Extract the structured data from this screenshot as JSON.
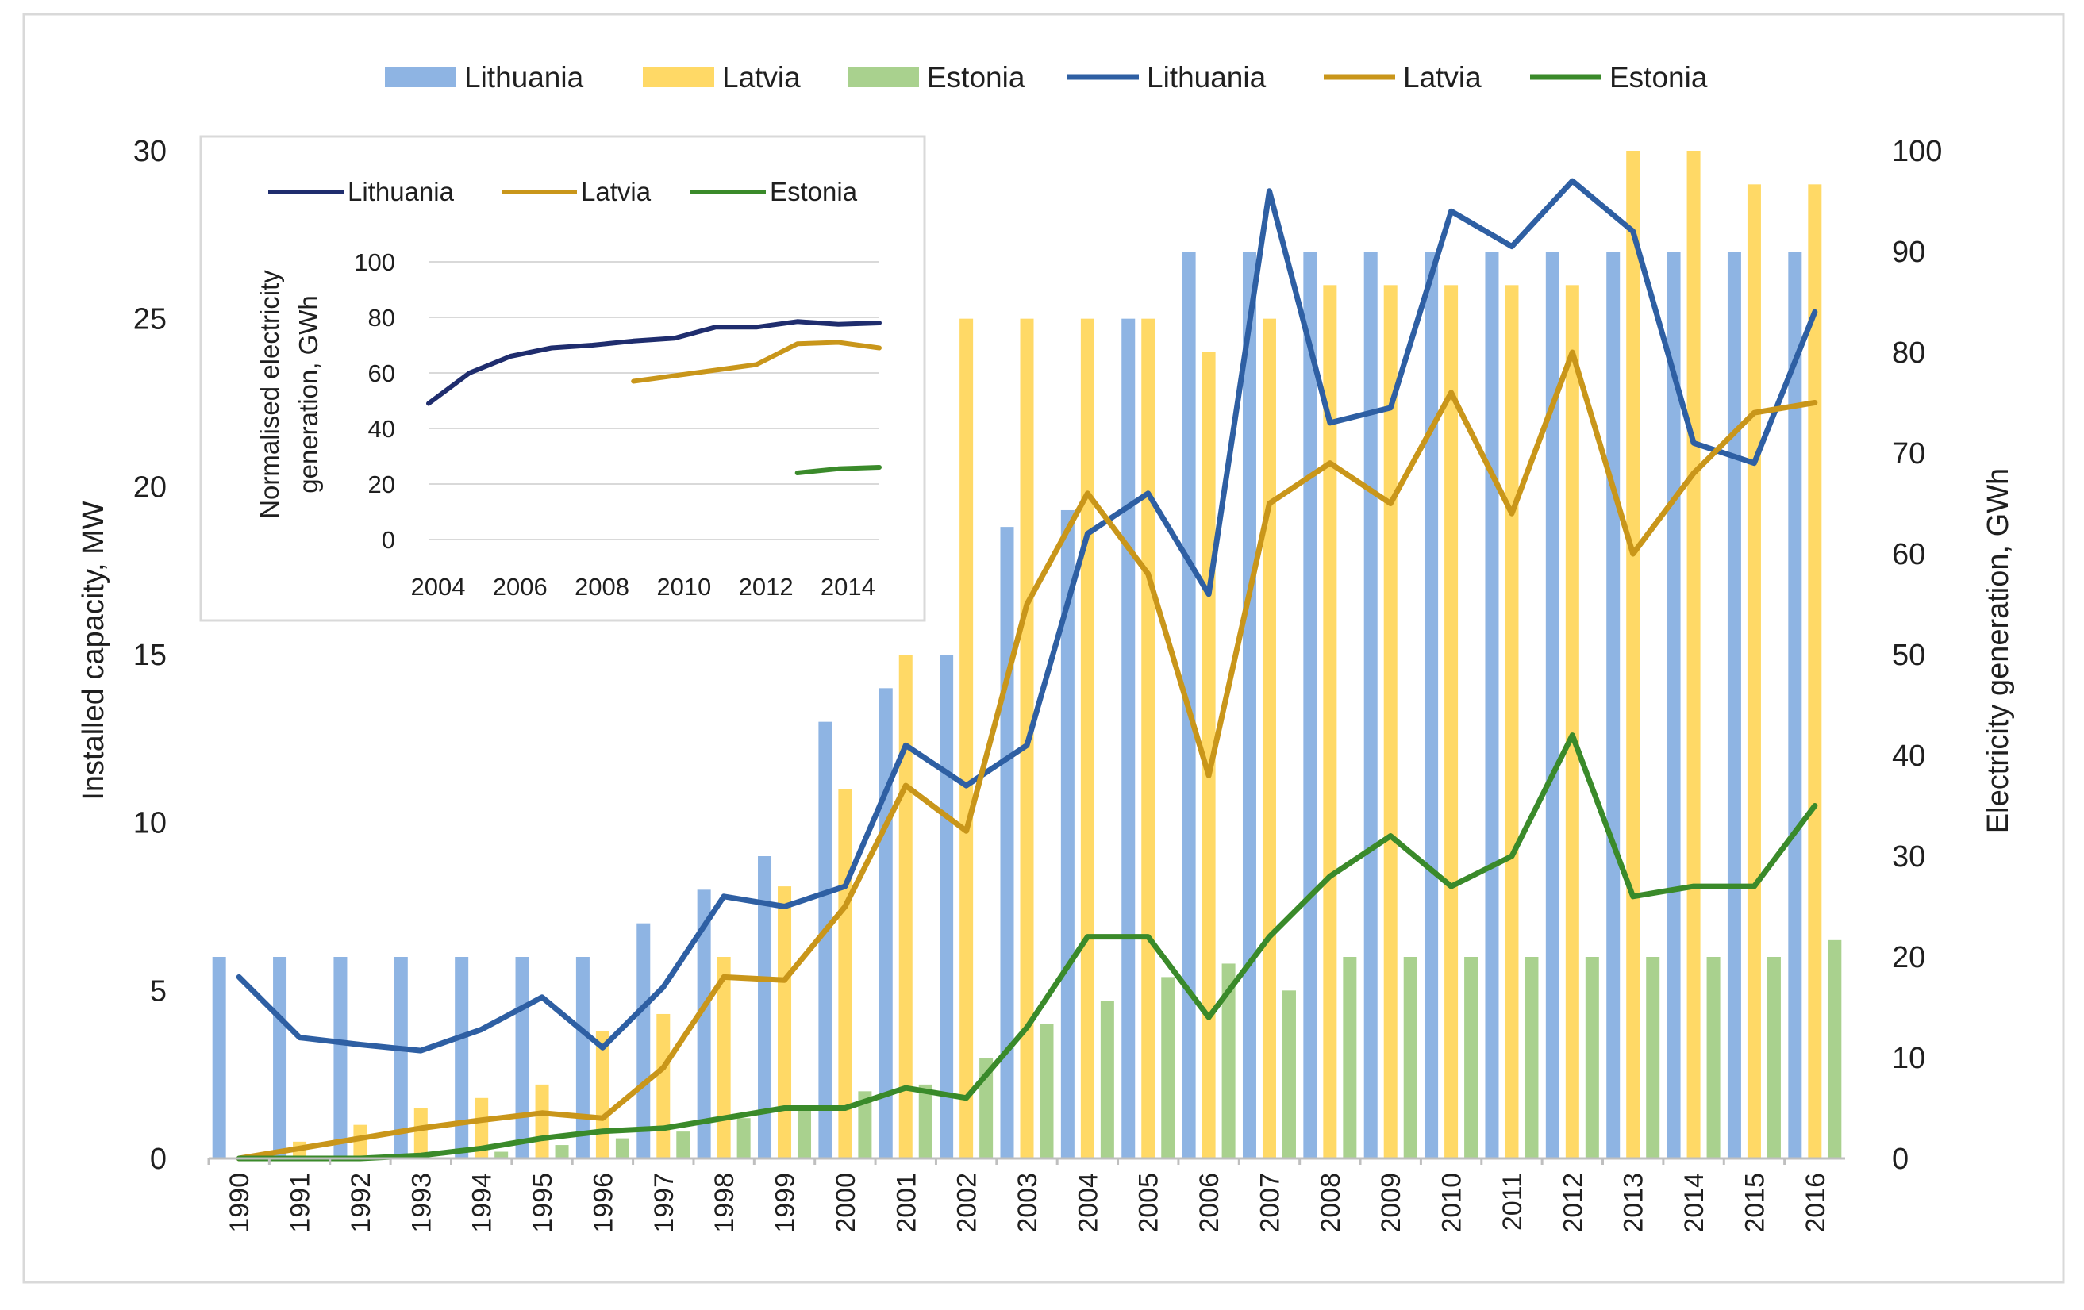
{
  "chart_data": [
    {
      "type": "bar+line",
      "title": "",
      "xlabel": "",
      "ylabel_left": "Installed capacity, MW",
      "ylabel_right": "Electricity generation, GWh",
      "ylim_left": [
        0,
        30
      ],
      "ylim_right": [
        0,
        100
      ],
      "yticks_left": [
        "0",
        "5",
        "10",
        "15",
        "20",
        "25",
        "30"
      ],
      "yticks_right": [
        "0",
        "10",
        "20",
        "30",
        "40",
        "50",
        "60",
        "70",
        "80",
        "90",
        "100"
      ],
      "legend_position": "top",
      "categories": [
        "1990",
        "1991",
        "1992",
        "1993",
        "1994",
        "1995",
        "1996",
        "1997",
        "1998",
        "1999",
        "2000",
        "2001",
        "2002",
        "2003",
        "2004",
        "2005",
        "2006",
        "2007",
        "2008",
        "2009",
        "2010",
        "2011",
        "2012",
        "2013",
        "2014",
        "2015",
        "2016"
      ],
      "bar_series": [
        {
          "name": "Lithuania",
          "color": "#8eb4e3",
          "axis": "left",
          "values": [
            6,
            6,
            6,
            6,
            6,
            6,
            6,
            7,
            8,
            9,
            13,
            14,
            15,
            18.8,
            19.3,
            25,
            27,
            27,
            27,
            27,
            27,
            27,
            27,
            27,
            27,
            27,
            27
          ]
        },
        {
          "name": "Latvia",
          "color": "#ffd966",
          "axis": "left",
          "values": [
            0,
            0.5,
            1,
            1.5,
            1.8,
            2.2,
            3.8,
            4.3,
            6,
            8.1,
            11,
            15,
            25,
            25,
            25,
            25,
            24,
            25,
            26,
            26,
            26,
            26,
            26,
            30,
            30,
            29,
            29
          ]
        },
        {
          "name": "Estonia",
          "color": "#a9d18e",
          "axis": "left",
          "values": [
            0,
            0,
            0,
            0,
            0.2,
            0.4,
            0.6,
            0.8,
            1.2,
            1.5,
            2,
            2.2,
            3,
            4,
            4.7,
            5.4,
            5.8,
            5,
            6,
            6,
            6,
            6,
            6,
            6,
            6,
            6,
            6.5
          ]
        }
      ],
      "line_series": [
        {
          "name": "Lithuania",
          "color": "#2e5fa3",
          "axis": "right",
          "values": [
            18,
            12,
            11.3,
            10.7,
            12.8,
            16,
            11,
            17,
            26,
            25,
            27,
            41,
            37,
            41,
            62,
            66,
            56,
            96,
            73,
            74.5,
            94,
            90.5,
            97,
            92,
            71,
            69,
            84
          ]
        },
        {
          "name": "Latvia",
          "color": "#c9961a",
          "axis": "right",
          "values": [
            0,
            1,
            2,
            3,
            3.8,
            4.5,
            4,
            9,
            18,
            17.7,
            25,
            37,
            32.5,
            55,
            66,
            58,
            38,
            65,
            69,
            65,
            76,
            64,
            80,
            60,
            68,
            74,
            75
          ]
        },
        {
          "name": "Estonia",
          "color": "#3a8a2a",
          "axis": "right",
          "values": [
            0,
            0,
            0,
            0.3,
            1,
            2,
            2.7,
            3,
            4,
            5,
            5,
            7,
            6,
            13,
            22,
            22,
            14,
            22,
            28,
            32,
            27,
            30,
            42,
            26,
            27,
            27,
            35
          ]
        }
      ]
    },
    {
      "type": "line",
      "title": "",
      "xlabel": "",
      "ylabel": "Normalised electricity generation, GWh",
      "ylim": [
        0,
        100
      ],
      "yticks": [
        "0",
        "20",
        "40",
        "60",
        "80",
        "100"
      ],
      "xticks": [
        "2004",
        "2006",
        "2008",
        "2010",
        "2012",
        "2014"
      ],
      "xlim": [
        2004,
        2015
      ],
      "legend_position": "top",
      "series": [
        {
          "name": "Lithuania",
          "color": "#1f2d6e",
          "x": [
            2004,
            2005,
            2006,
            2007,
            2008,
            2009,
            2010,
            2011,
            2012,
            2013,
            2014,
            2015
          ],
          "y": [
            49,
            60,
            66,
            69,
            70,
            71.5,
            72.5,
            76.5,
            76.5,
            78.5,
            77.5,
            78
          ]
        },
        {
          "name": "Latvia",
          "color": "#c9961a",
          "x": [
            2009,
            2010,
            2011,
            2012,
            2013,
            2014,
            2015
          ],
          "y": [
            57,
            59,
            61,
            63,
            70.5,
            71,
            69
          ]
        },
        {
          "name": "Estonia",
          "color": "#3a8a2a",
          "x": [
            2013,
            2014,
            2015
          ],
          "y": [
            24,
            25.5,
            26
          ]
        }
      ]
    }
  ]
}
